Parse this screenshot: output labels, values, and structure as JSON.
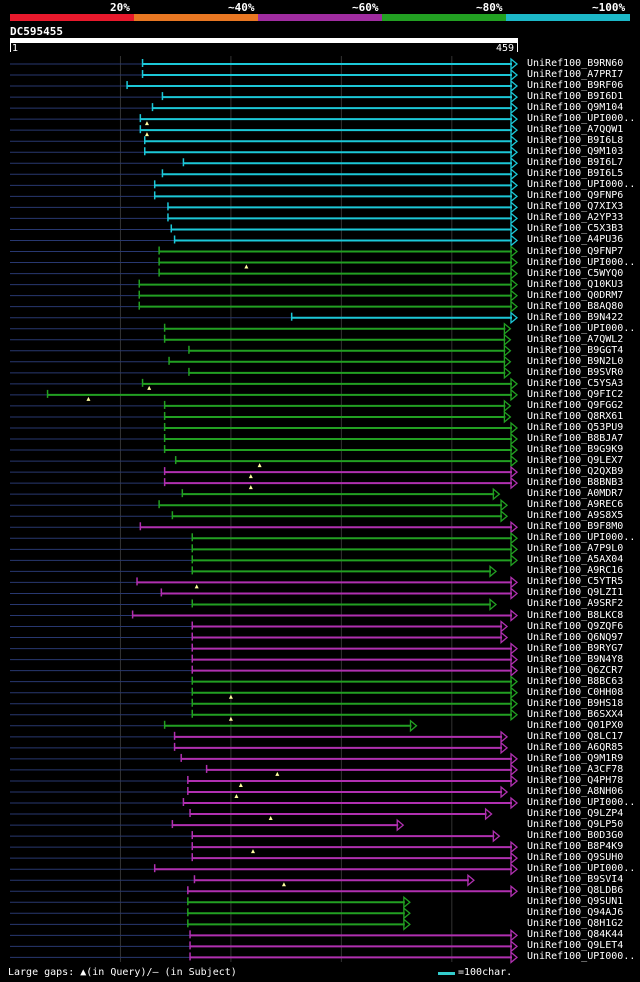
{
  "legend": {
    "labels": [
      "20%",
      "~40%",
      "~60%",
      "~80%",
      "~100%"
    ],
    "colors": [
      "#e8192c",
      "#e87722",
      "#a02ca0",
      "#22a022",
      "#1cb8c8"
    ]
  },
  "query": {
    "name": "DC595455",
    "start": "1",
    "end": "459",
    "length": 459
  },
  "footer": {
    "gaps_text": "Large gaps: ▲(in Query)/— (in Subject)",
    "scale_text": "=100char."
  },
  "colors": {
    "cyan": "#1cc8d8",
    "green": "#22a022",
    "magenta": "#b030b0",
    "dark": "#283870"
  },
  "chart_data": {
    "type": "alignment",
    "hits": [
      {
        "name": "UniRef100_B9RN60",
        "start": 120,
        "end": 459,
        "color": "cyan"
      },
      {
        "name": "UniRef100_A7PRI7",
        "start": 120,
        "end": 459,
        "color": "cyan"
      },
      {
        "name": "UniRef100_B9RF06",
        "start": 106,
        "end": 459,
        "color": "cyan"
      },
      {
        "name": "UniRef100_B9I6D1",
        "start": 138,
        "end": 459,
        "color": "cyan"
      },
      {
        "name": "UniRef100_Q9M104",
        "start": 129,
        "end": 459,
        "color": "cyan"
      },
      {
        "name": "UniRef100_UPI000..",
        "start": 118,
        "end": 459,
        "color": "cyan",
        "gap": 124
      },
      {
        "name": "UniRef100_A7QQW1",
        "start": 118,
        "end": 459,
        "color": "cyan",
        "gap": 124
      },
      {
        "name": "UniRef100_B9I6L8",
        "start": 122,
        "end": 459,
        "color": "cyan"
      },
      {
        "name": "UniRef100_Q9M103",
        "start": 122,
        "end": 459,
        "color": "cyan"
      },
      {
        "name": "UniRef100_B9I6L7",
        "start": 157,
        "end": 459,
        "color": "cyan"
      },
      {
        "name": "UniRef100_B9I6L5",
        "start": 138,
        "end": 459,
        "color": "cyan"
      },
      {
        "name": "UniRef100_UPI000..",
        "start": 131,
        "end": 459,
        "color": "cyan"
      },
      {
        "name": "UniRef100_Q9FNP6",
        "start": 131,
        "end": 459,
        "color": "cyan"
      },
      {
        "name": "UniRef100_Q7XIX3",
        "start": 143,
        "end": 459,
        "color": "cyan"
      },
      {
        "name": "UniRef100_A2YP33",
        "start": 143,
        "end": 459,
        "color": "cyan"
      },
      {
        "name": "UniRef100_C5X3B3",
        "start": 146,
        "end": 459,
        "color": "cyan"
      },
      {
        "name": "UniRef100_A4PU36",
        "start": 149,
        "end": 459,
        "color": "cyan"
      },
      {
        "name": "UniRef100_Q9FNP7",
        "start": 135,
        "end": 459,
        "color": "green"
      },
      {
        "name": "UniRef100_UPI000..",
        "start": 135,
        "end": 459,
        "color": "green",
        "gap": 214
      },
      {
        "name": "UniRef100_C5WYQ0",
        "start": 135,
        "end": 459,
        "color": "green"
      },
      {
        "name": "UniRef100_Q10KU3",
        "start": 117,
        "end": 459,
        "color": "green"
      },
      {
        "name": "UniRef100_Q0DRM7",
        "start": 117,
        "end": 459,
        "color": "green"
      },
      {
        "name": "UniRef100_B8AQ80",
        "start": 117,
        "end": 459,
        "color": "green"
      },
      {
        "name": "UniRef100_B9N422",
        "start": 255,
        "end": 459,
        "color": "cyan"
      },
      {
        "name": "UniRef100_UPI000..",
        "start": 140,
        "end": 453,
        "color": "green"
      },
      {
        "name": "UniRef100_A7QWL2",
        "start": 140,
        "end": 453,
        "color": "green"
      },
      {
        "name": "UniRef100_B9GGT4",
        "start": 162,
        "end": 453,
        "color": "green"
      },
      {
        "name": "UniRef100_B9N2L0",
        "start": 144,
        "end": 453,
        "color": "green"
      },
      {
        "name": "UniRef100_B9SVR0",
        "start": 162,
        "end": 453,
        "color": "green"
      },
      {
        "name": "UniRef100_C5YSA3",
        "start": 120,
        "end": 459,
        "color": "green",
        "gap": 126
      },
      {
        "name": "UniRef100_Q9FIC2",
        "start": 34,
        "end": 459,
        "color": "green",
        "gap": 71
      },
      {
        "name": "UniRef100_Q9FGG2",
        "start": 140,
        "end": 453,
        "color": "green"
      },
      {
        "name": "UniRef100_Q8RX61",
        "start": 140,
        "end": 453,
        "color": "green"
      },
      {
        "name": "UniRef100_Q53PU9",
        "start": 140,
        "end": 459,
        "color": "green"
      },
      {
        "name": "UniRef100_B8BJA7",
        "start": 140,
        "end": 459,
        "color": "green"
      },
      {
        "name": "UniRef100_B9G9K9",
        "start": 140,
        "end": 459,
        "color": "green"
      },
      {
        "name": "UniRef100_Q9LEX7",
        "start": 150,
        "end": 459,
        "color": "green",
        "gap": 226
      },
      {
        "name": "UniRef100_Q2QXB9",
        "start": 140,
        "end": 459,
        "color": "magenta",
        "gap": 218
      },
      {
        "name": "UniRef100_B8BNB3",
        "start": 140,
        "end": 459,
        "color": "magenta",
        "gap": 218
      },
      {
        "name": "UniRef100_A0MDR7",
        "start": 156,
        "end": 443,
        "color": "green"
      },
      {
        "name": "UniRef100_A9REC6",
        "start": 135,
        "end": 450,
        "color": "green"
      },
      {
        "name": "UniRef100_A9S8X5",
        "start": 147,
        "end": 450,
        "color": "green"
      },
      {
        "name": "UniRef100_B9F8M0",
        "start": 118,
        "end": 459,
        "color": "magenta"
      },
      {
        "name": "UniRef100_UPI000..",
        "start": 165,
        "end": 459,
        "color": "green"
      },
      {
        "name": "UniRef100_A7P9L0",
        "start": 165,
        "end": 459,
        "color": "green"
      },
      {
        "name": "UniRef100_A5AX04",
        "start": 165,
        "end": 459,
        "color": "green"
      },
      {
        "name": "UniRef100_A9RC16",
        "start": 165,
        "end": 440,
        "color": "green"
      },
      {
        "name": "UniRef100_C5YTR5",
        "start": 115,
        "end": 459,
        "color": "magenta",
        "gap": 169
      },
      {
        "name": "UniRef100_Q9LZI1",
        "start": 137,
        "end": 459,
        "color": "magenta"
      },
      {
        "name": "UniRef100_A9SRF2",
        "start": 165,
        "end": 440,
        "color": "green"
      },
      {
        "name": "UniRef100_B8LKC8",
        "start": 111,
        "end": 459,
        "color": "magenta"
      },
      {
        "name": "UniRef100_Q9ZQF6",
        "start": 165,
        "end": 450,
        "color": "magenta"
      },
      {
        "name": "UniRef100_Q6NQ97",
        "start": 165,
        "end": 450,
        "color": "magenta"
      },
      {
        "name": "UniRef100_B9RYG7",
        "start": 165,
        "end": 459,
        "color": "magenta"
      },
      {
        "name": "UniRef100_B9N4Y8",
        "start": 165,
        "end": 459,
        "color": "magenta"
      },
      {
        "name": "UniRef100_Q6ZCR7",
        "start": 165,
        "end": 459,
        "color": "magenta"
      },
      {
        "name": "UniRef100_B8BC63",
        "start": 165,
        "end": 459,
        "color": "green"
      },
      {
        "name": "UniRef100_C0HH08",
        "start": 165,
        "end": 459,
        "color": "green",
        "gap": 200
      },
      {
        "name": "UniRef100_B9HS18",
        "start": 165,
        "end": 459,
        "color": "green"
      },
      {
        "name": "UniRef100_B6SXX4",
        "start": 165,
        "end": 459,
        "color": "green",
        "gap": 200
      },
      {
        "name": "UniRef100_Q01PX0",
        "start": 140,
        "end": 368,
        "color": "green"
      },
      {
        "name": "UniRef100_Q8LC17",
        "start": 149,
        "end": 450,
        "color": "magenta"
      },
      {
        "name": "UniRef100_A6QR85",
        "start": 149,
        "end": 450,
        "color": "magenta"
      },
      {
        "name": "UniRef100_Q9M1R9",
        "start": 155,
        "end": 459,
        "color": "magenta"
      },
      {
        "name": "UniRef100_A3CF78",
        "start": 178,
        "end": 459,
        "color": "magenta",
        "gap": 242
      },
      {
        "name": "UniRef100_Q4PH78",
        "start": 161,
        "end": 459,
        "color": "magenta",
        "gap": 209
      },
      {
        "name": "UniRef100_A8NH06",
        "start": 161,
        "end": 450,
        "color": "magenta",
        "gap": 205
      },
      {
        "name": "UniRef100_UPI000..",
        "start": 157,
        "end": 459,
        "color": "magenta"
      },
      {
        "name": "UniRef100_Q9LZP4",
        "start": 163,
        "end": 436,
        "color": "magenta",
        "gap": 236
      },
      {
        "name": "UniRef100_Q9LP50",
        "start": 147,
        "end": 356,
        "color": "magenta"
      },
      {
        "name": "UniRef100_B0D3G0",
        "start": 165,
        "end": 443,
        "color": "magenta"
      },
      {
        "name": "UniRef100_B8P4K9",
        "start": 165,
        "end": 459,
        "color": "magenta",
        "gap": 220
      },
      {
        "name": "UniRef100_Q9SUH0",
        "start": 165,
        "end": 459,
        "color": "magenta"
      },
      {
        "name": "UniRef100_UPI000..",
        "start": 131,
        "end": 459,
        "color": "magenta"
      },
      {
        "name": "UniRef100_B9SVI4",
        "start": 167,
        "end": 420,
        "color": "magenta",
        "gap": 248
      },
      {
        "name": "UniRef100_Q8LDB6",
        "start": 161,
        "end": 459,
        "color": "magenta"
      },
      {
        "name": "UniRef100_Q9SUN1",
        "start": 161,
        "end": 362,
        "color": "green"
      },
      {
        "name": "UniRef100_Q94AJ6",
        "start": 161,
        "end": 362,
        "color": "green"
      },
      {
        "name": "UniRef100_Q8H1G2",
        "start": 161,
        "end": 362,
        "color": "green"
      },
      {
        "name": "UniRef100_Q84K44",
        "start": 163,
        "end": 459,
        "color": "magenta"
      },
      {
        "name": "UniRef100_Q9LET4",
        "start": 163,
        "end": 459,
        "color": "magenta"
      },
      {
        "name": "UniRef100_UPI000..",
        "start": 163,
        "end": 459,
        "color": "magenta"
      }
    ]
  }
}
